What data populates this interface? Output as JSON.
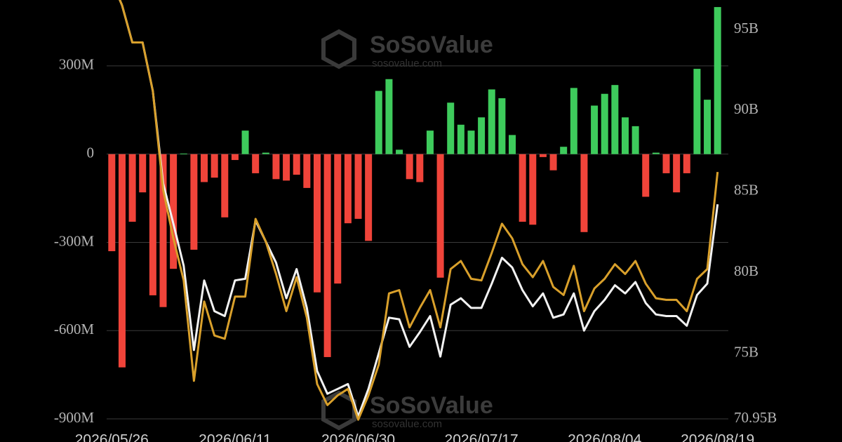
{
  "chart_data": {
    "type": "bar-line",
    "watermarks": [
      {
        "brand": "SoSoValue",
        "site": "sosovalue.com"
      },
      {
        "brand": "SoSoValue",
        "site": "sosovalue.com"
      }
    ],
    "categories": [
      "2026/05/26",
      null,
      null,
      null,
      null,
      null,
      null,
      null,
      null,
      null,
      null,
      null,
      "2026/06/11",
      null,
      null,
      null,
      null,
      null,
      null,
      null,
      null,
      null,
      null,
      null,
      "2026/06/30",
      null,
      null,
      null,
      null,
      null,
      null,
      null,
      null,
      null,
      null,
      null,
      "2026/07/17",
      null,
      null,
      null,
      null,
      null,
      null,
      null,
      null,
      null,
      null,
      null,
      "2026/08/04",
      null,
      null,
      null,
      null,
      null,
      null,
      null,
      null,
      null,
      null,
      "2026/08/19"
    ],
    "series": [
      {
        "type": "bar",
        "positive_color": "#3ecb5c",
        "negative_color": "#f0443a",
        "values": [
          -330,
          -725,
          -230,
          -130,
          -480,
          -520,
          -390,
          2,
          -325,
          -95,
          -80,
          -215,
          -20,
          80,
          -65,
          5,
          -85,
          -90,
          -70,
          -115,
          -470,
          -690,
          -440,
          -235,
          -220,
          -295,
          215,
          255,
          15,
          -85,
          -95,
          80,
          -420,
          175,
          100,
          80,
          125,
          220,
          190,
          65,
          -230,
          -240,
          -10,
          -55,
          25,
          225,
          -265,
          165,
          205,
          235,
          125,
          95,
          -145,
          5,
          -65,
          -130,
          -65,
          290,
          185,
          500
        ]
      },
      {
        "type": "line",
        "axis": "y2",
        "color": "#f2f2f2",
        "values": [
          98,
          96.5,
          94.2,
          94.2,
          91.2,
          85.5,
          83.0,
          80.4,
          75.2,
          79.5,
          77.6,
          77.3,
          79.5,
          79.6,
          83.2,
          81.9,
          80.6,
          78.4,
          80.2,
          77.8,
          73.9,
          72.5,
          72.8,
          73.1,
          71.1,
          72.8,
          75.0,
          77.2,
          77.1,
          75.4,
          76.3,
          77.3,
          74.8,
          78.0,
          78.4,
          77.8,
          77.8,
          79.3,
          80.9,
          80.3,
          78.9,
          77.9,
          78.7,
          77.2,
          77.4,
          78.7,
          76.4,
          77.6,
          78.3,
          79.2,
          78.7,
          79.4,
          78.1,
          77.4,
          77.3,
          77.3,
          76.7,
          78.6,
          79.3,
          84.2
        ]
      },
      {
        "type": "line",
        "axis": "y2",
        "color": "#d9a02b",
        "values": [
          98,
          96.5,
          94.2,
          94.2,
          91.2,
          85.1,
          82.1,
          79.5,
          73.3,
          78.2,
          76.1,
          75.9,
          78.5,
          78.5,
          83.3,
          81.9,
          79.9,
          77.6,
          79.7,
          77.2,
          73.1,
          71.8,
          72.4,
          72.8,
          70.9,
          72.4,
          74.3,
          78.7,
          78.9,
          76.6,
          77.8,
          78.9,
          76.6,
          80.2,
          80.7,
          79.6,
          79.5,
          81.2,
          83.0,
          82.1,
          80.5,
          79.7,
          80.7,
          79.1,
          78.6,
          80.4,
          77.6,
          79.0,
          79.6,
          80.5,
          79.9,
          80.7,
          79.3,
          78.4,
          78.3,
          78.3,
          77.6,
          79.6,
          80.2,
          86.2
        ]
      }
    ],
    "ylim": [
      -900,
      524
    ],
    "yticks": [
      {
        "value": 300,
        "label": "300M"
      },
      {
        "value": 0,
        "label": "0"
      },
      {
        "value": -300,
        "label": "-300M"
      },
      {
        "value": -600,
        "label": "-600M"
      },
      {
        "value": -900,
        "label": "-900M"
      }
    ],
    "y2lim": [
      70.95,
      96.82
    ],
    "y2ticks": [
      {
        "value": 95,
        "label": "95B"
      },
      {
        "value": 90,
        "label": "90B"
      },
      {
        "value": 85,
        "label": "85B"
      },
      {
        "value": 80,
        "label": "80B"
      },
      {
        "value": 75,
        "label": "75B"
      },
      {
        "value": 70.95,
        "label": "70.95B"
      }
    ],
    "grid": true
  }
}
